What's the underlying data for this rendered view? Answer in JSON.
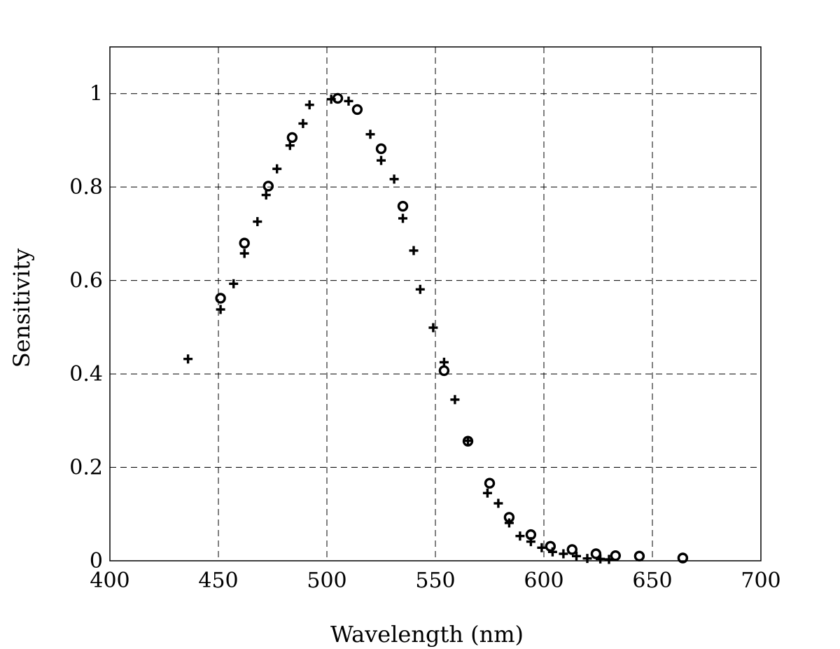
{
  "chart_data": {
    "type": "scatter",
    "title": "",
    "xlabel": "Wavelength (nm)",
    "ylabel": "Sensitivity",
    "xlim": [
      400,
      700
    ],
    "ylim": [
      0,
      1.1
    ],
    "x_ticks": [
      400,
      450,
      500,
      550,
      600,
      650,
      700
    ],
    "x_tick_labels": [
      "400",
      "450",
      "500",
      "550",
      "600",
      "650",
      "700"
    ],
    "y_ticks": [
      0,
      0.2,
      0.4,
      0.6,
      0.8,
      1
    ],
    "y_tick_labels": [
      "0",
      "0.2",
      "0.4",
      "0.6",
      "0.8",
      "1"
    ],
    "grid": true,
    "legend": "none",
    "series": [
      {
        "marker": "plus",
        "x": [
          436,
          451,
          457,
          462,
          468,
          472,
          477,
          483,
          489,
          492,
          502,
          510,
          520,
          525,
          531,
          535,
          540,
          543,
          549,
          554,
          559,
          565,
          574,
          579,
          584,
          589,
          594,
          599,
          604,
          609,
          615,
          620,
          626,
          630
        ],
        "y": [
          0.432,
          0.538,
          0.593,
          0.658,
          0.726,
          0.783,
          0.839,
          0.889,
          0.936,
          0.976,
          0.988,
          0.984,
          0.913,
          0.857,
          0.817,
          0.733,
          0.664,
          0.581,
          0.499,
          0.425,
          0.345,
          0.257,
          0.145,
          0.123,
          0.081,
          0.053,
          0.041,
          0.028,
          0.019,
          0.015,
          0.01,
          0.005,
          0.004,
          0.003
        ]
      },
      {
        "marker": "circle",
        "x": [
          451,
          462,
          473,
          484,
          505,
          514,
          525,
          535,
          554,
          565,
          575,
          584,
          594,
          603,
          613,
          624,
          633,
          644,
          664
        ],
        "y": [
          0.562,
          0.68,
          0.802,
          0.906,
          0.99,
          0.966,
          0.882,
          0.759,
          0.407,
          0.256,
          0.166,
          0.093,
          0.056,
          0.031,
          0.024,
          0.015,
          0.011,
          0.01,
          0.006
        ]
      }
    ]
  }
}
